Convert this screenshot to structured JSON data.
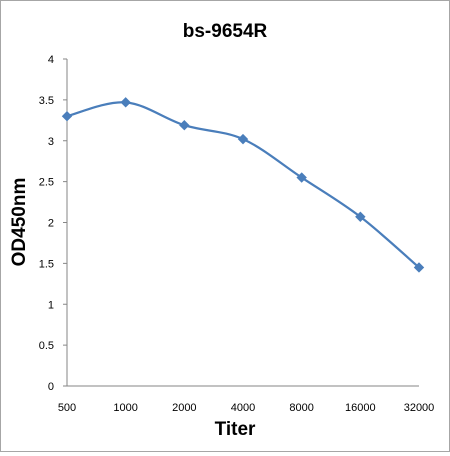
{
  "chart_data": {
    "type": "line",
    "title": "bs-9654R",
    "xlabel": "Titer",
    "ylabel": "OD450nm",
    "categories": [
      "500",
      "1000",
      "2000",
      "4000",
      "8000",
      "16000",
      "32000"
    ],
    "series": [
      {
        "values": [
          3.3,
          3.47,
          3.19,
          3.02,
          2.55,
          2.07,
          1.45
        ]
      }
    ],
    "ylim": [
      0,
      4
    ],
    "yticks": [
      "0",
      "0.5",
      "1",
      "1.5",
      "2",
      "2.5",
      "3",
      "3.5",
      "4"
    ],
    "grid": false,
    "legend": "none",
    "smooth": true,
    "marker": "diamond",
    "series_color": "#4a7ebb"
  }
}
